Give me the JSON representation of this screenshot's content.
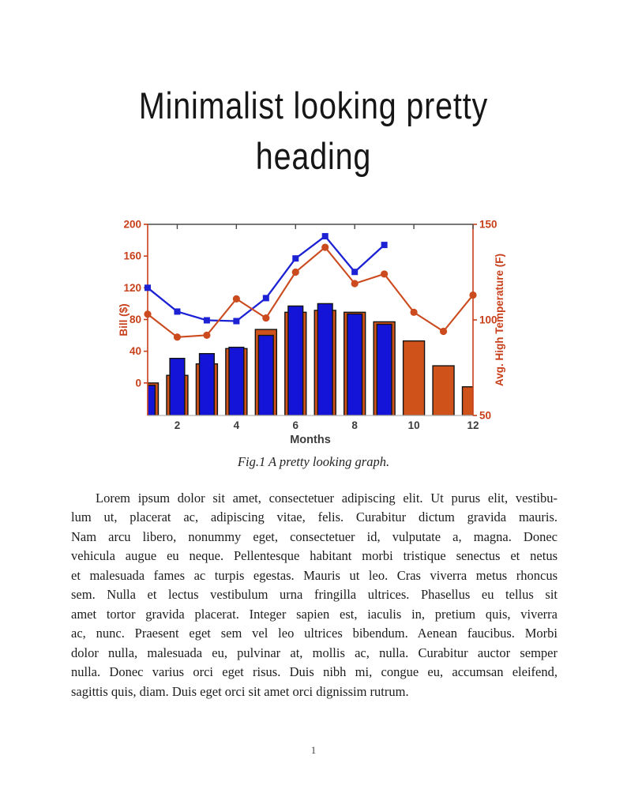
{
  "page": {
    "number": "1"
  },
  "header": {
    "title_lines": [
      "Minimalist looking pretty",
      "heading"
    ]
  },
  "figure": {
    "caption": "Fig.1 A pretty looking graph."
  },
  "body": {
    "lines": [
      "Lorem ipsum dolor sit amet, consectetuer adipiscing elit. Ut purus elit, vestibu-",
      "lum ut, placerat ac, adipiscing vitae, felis. Curabitur dictum gravida mauris.",
      "Nam arcu libero, nonummy eget, consectetuer id, vulputate a, magna. Donec",
      "vehicula augue eu neque. Pellentesque habitant morbi tristique senectus et netus",
      "et malesuada fames ac turpis egestas. Mauris ut leo. Cras viverra metus rhoncus",
      "sem. Nulla et lectus vestibulum urna fringilla ultrices. Phasellus eu tellus sit",
      "amet tortor gravida placerat. Integer sapien est, iaculis in, pretium quis, viverra",
      "ac, nunc. Praesent eget sem vel leo ultrices bibendum. Aenean faucibus. Morbi",
      "dolor nulla, malesuada eu, pulvinar at, mollis ac, nulla. Curabitur auctor semper",
      "nulla. Donec varius orci eget risus. Duis nibh mi, congue eu, accumsan eleifend,",
      "sagittis quis, diam. Duis eget orci sit amet orci dignissim rutrum."
    ]
  },
  "chart_data": {
    "type": "bar+line dual-axis combo",
    "xlabel": "Months",
    "ylabel_left": "Bill ($)",
    "ylabel_right": "Avg. High Temperature (F)",
    "xlim": [
      1,
      12
    ],
    "xticks": [
      2,
      4,
      6,
      8,
      10,
      12
    ],
    "ylim_left": [
      -41,
      200
    ],
    "yticks_left": [
      0,
      40,
      80,
      120,
      160,
      200
    ],
    "ylim_right": [
      50,
      150
    ],
    "yticks_right": [
      50,
      100,
      150
    ],
    "grid": false,
    "legend": "none",
    "colors": {
      "blue_bar": "#1414d8",
      "blue_line": "#1c22d4",
      "orange_bar": "#cf521b",
      "orange_line": "#cb4a1e",
      "axis_orange": "#c8401b",
      "xtick_text": "#3c3c3c",
      "bar_edge": "#141414",
      "top_spine": "#4a4a4a",
      "bottom_spine": "#b5b5b5"
    },
    "series": [
      {
        "name": "avg-high-temperature-bars",
        "type": "bar",
        "axis": "right",
        "color_key": "orange_bar",
        "bar_width": 0.72,
        "months": [
          1,
          2,
          3,
          4,
          5,
          6,
          7,
          8,
          9,
          10,
          11,
          12
        ],
        "values": [
          67,
          71,
          77,
          85,
          95,
          104,
          105,
          104,
          99,
          89,
          76,
          65
        ]
      },
      {
        "name": "bill-bars",
        "type": "bar",
        "axis": "left",
        "color_key": "blue_bar",
        "bar_width": 0.5,
        "months": [
          1,
          2,
          3,
          4,
          5,
          6,
          7,
          8,
          9
        ],
        "values": [
          -3,
          31,
          37,
          45,
          60,
          97,
          100,
          87,
          74
        ]
      },
      {
        "name": "bill-line",
        "type": "line",
        "axis": "left",
        "marker": "square",
        "color_key": "blue_line",
        "line_width": 2.3,
        "months": [
          1,
          2,
          3,
          4,
          5,
          6,
          7,
          8,
          9
        ],
        "values": [
          120,
          90,
          79,
          78,
          107,
          157,
          185,
          140,
          174
        ]
      },
      {
        "name": "temperature-line",
        "type": "line",
        "axis": "right",
        "marker": "circle",
        "color_key": "orange_line",
        "line_width": 2.1,
        "months": [
          1,
          2,
          3,
          4,
          5,
          6,
          7,
          8,
          9,
          10,
          11,
          12
        ],
        "values": [
          103,
          91,
          92,
          111,
          101,
          125,
          138,
          119,
          124,
          104,
          94,
          113
        ]
      }
    ]
  }
}
